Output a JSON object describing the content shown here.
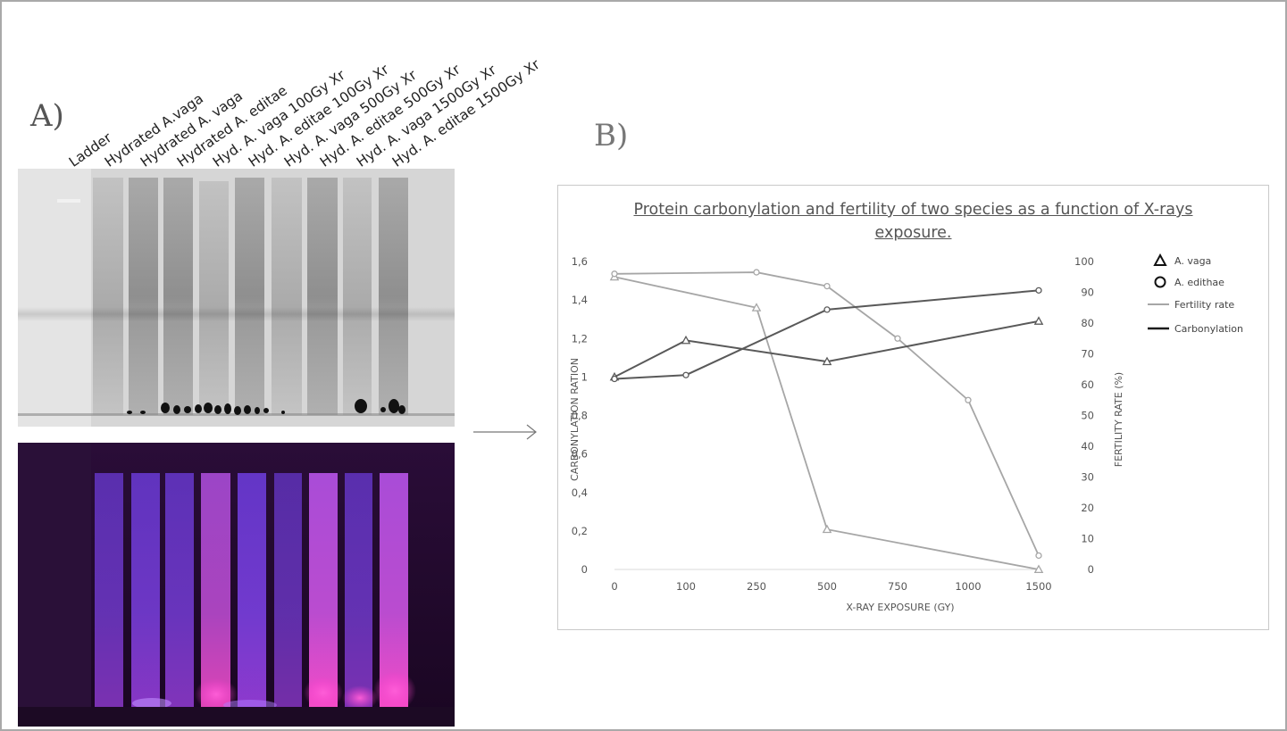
{
  "panels": {
    "a": "A)",
    "b": "B)"
  },
  "lanes": [
    "Ladder",
    "Hydrated A.vaga",
    "Hydrated A. vaga",
    "Hydrated A. editae",
    "Hyd. A. vaga 100Gy Xr",
    "Hyd. A. editae 100Gy Xr",
    "Hyd. A. vaga 500Gy Xr",
    "Hyd. A. editae 500Gy Xr",
    "Hyd. A. vaga 1500Gy Xr",
    "Hyd. A. editae 1500Gy Xr"
  ],
  "colors": {
    "fertility_line": "#a6a6a6",
    "carbonylation_line": "#595959",
    "uv_background": "#200a2c",
    "uv_lane": "#7a3fe0",
    "uv_glow": "#ff3fd0"
  },
  "chart_data": {
    "type": "line",
    "title": "Protein carbonylation and fertility of two species as a function of X-rays exposure.",
    "xlabel": "X-RAY EXPOSURE (GY)",
    "ylabel": "CARBONYLATION RATION",
    "y2label": "FERTILITY RATE (%)",
    "x_ticks": [
      "0",
      "100",
      "250",
      "500",
      "750",
      "1000",
      "1500"
    ],
    "ylim": [
      0,
      1.6
    ],
    "y_ticks": [
      "0",
      "0,2",
      "0,4",
      "0,6",
      "0,8",
      "1",
      "1,2",
      "1,4",
      "1,6"
    ],
    "y2lim": [
      0,
      100
    ],
    "y2_ticks": [
      "0",
      "10",
      "20",
      "30",
      "40",
      "50",
      "60",
      "70",
      "80",
      "90",
      "100"
    ],
    "legend_position": "right",
    "legend": [
      {
        "label": "A. vaga",
        "kind": "triangle"
      },
      {
        "label": "A. edithae",
        "kind": "circle"
      },
      {
        "label": "Fertility rate",
        "kind": "line-light"
      },
      {
        "label": "Carbonylation",
        "kind": "line-dark"
      }
    ],
    "series": [
      {
        "measure": "fertility",
        "species": "A. vaga",
        "marker": "triangle",
        "axis": "right",
        "x": [
          "0",
          "250",
          "500",
          "1500"
        ],
        "values": [
          95,
          85,
          13,
          0
        ]
      },
      {
        "measure": "fertility",
        "species": "A. edithae",
        "marker": "circle",
        "axis": "right",
        "x": [
          "0",
          "250",
          "500",
          "750",
          "1000",
          "1500"
        ],
        "values": [
          96,
          96.5,
          92,
          75,
          55,
          4.5
        ]
      },
      {
        "measure": "carbonylation",
        "species": "A. vaga",
        "marker": "triangle",
        "axis": "left",
        "x": [
          "0",
          "100",
          "500",
          "1500"
        ],
        "values": [
          1.0,
          1.19,
          1.08,
          1.29
        ]
      },
      {
        "measure": "carbonylation",
        "species": "A. edithae",
        "marker": "circle",
        "axis": "left",
        "x": [
          "0",
          "100",
          "500",
          "1500"
        ],
        "values": [
          0.99,
          1.01,
          1.35,
          1.45
        ]
      }
    ]
  }
}
